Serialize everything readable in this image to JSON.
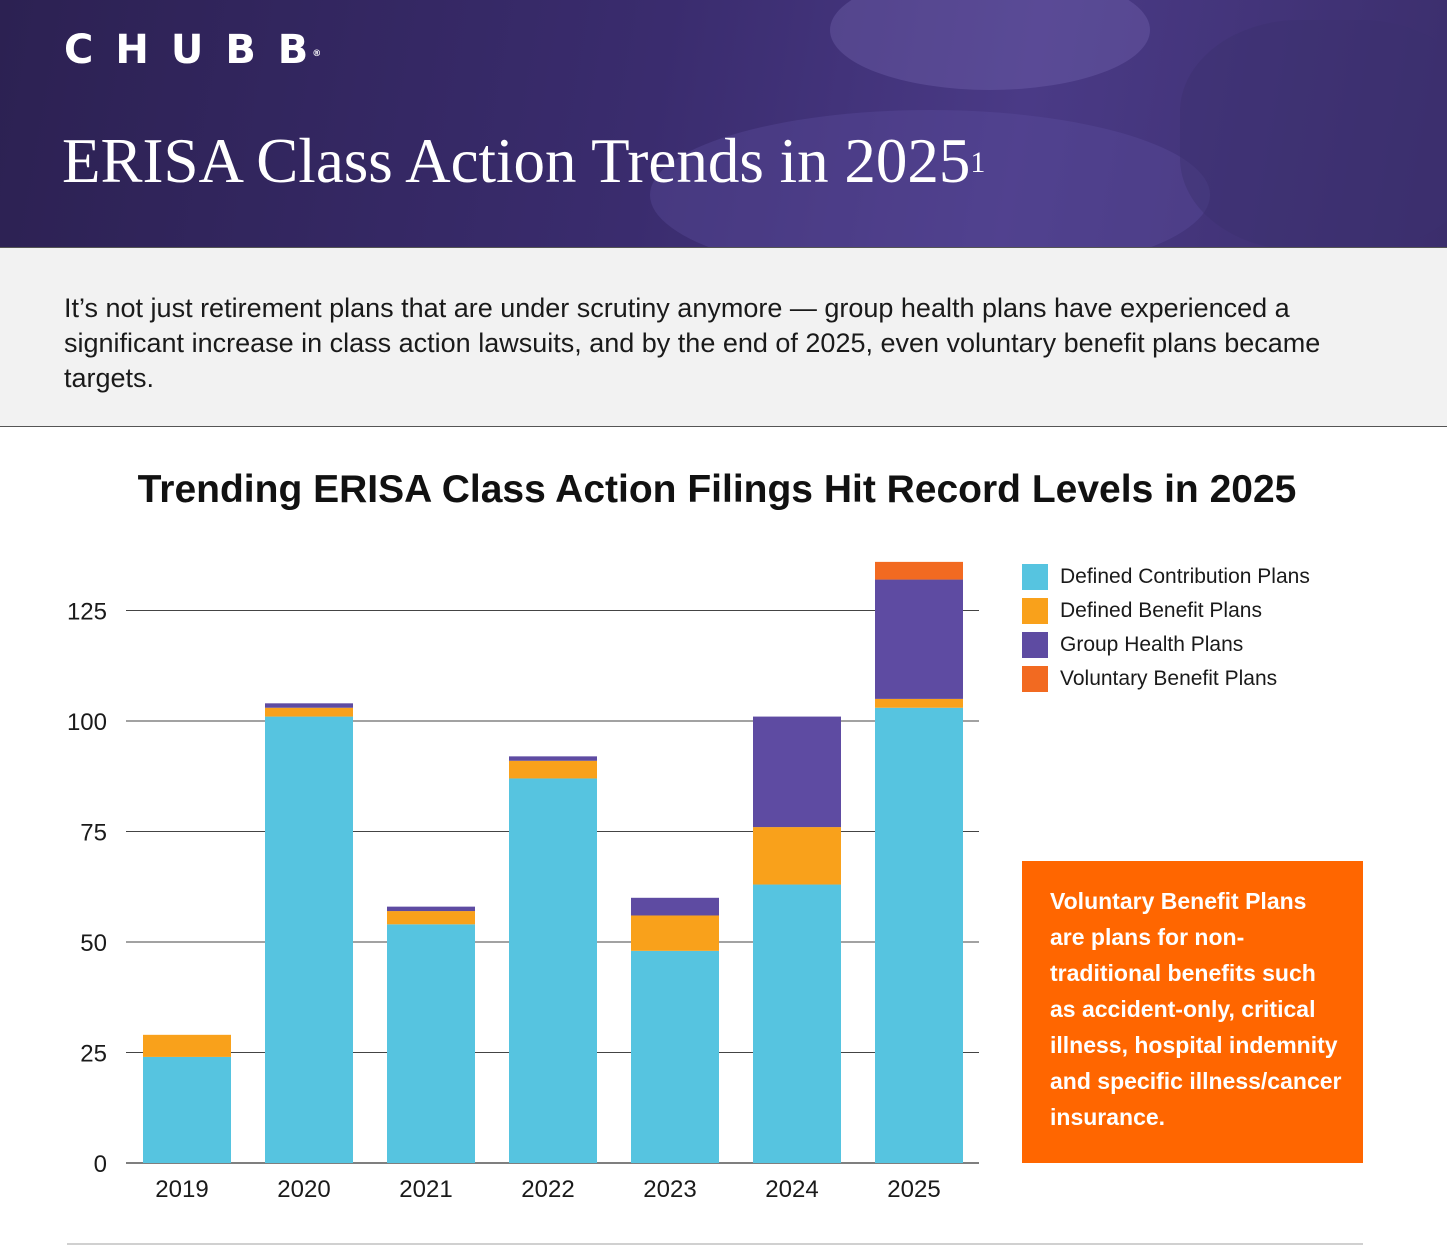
{
  "header": {
    "logo_text": "CHUBB",
    "logo_mark": "®",
    "title": "ERISA Class Action Trends in 2025",
    "title_footnote": "1"
  },
  "intro": {
    "text": "It’s not just retirement plans that are under scrutiny anymore — group health plans have experienced a significant increase in class action lawsuits, and by the end of 2025, even voluntary benefit plans became targets."
  },
  "callout": {
    "text": "Voluntary Benefit Plans are plans for non-traditional benefits such as accident-only, critical illness, hospital indemnity and specific illness/cancer insurance."
  },
  "colors": {
    "brand_purple": "#3a2c6e",
    "defined_contribution": "#56c4e0",
    "defined_benefit": "#f9a11b",
    "group_health": "#5e4ba2",
    "voluntary_benefit": "#f26a21",
    "callout_orange": "#ff6600"
  },
  "chart_data": {
    "type": "bar",
    "stacked": true,
    "title": "Trending ERISA Class Action Filings Hit Record Levels in 2025",
    "categories": [
      "2019",
      "2020",
      "2021",
      "2022",
      "2023",
      "2024",
      "2025"
    ],
    "series": [
      {
        "name": "Defined Contribution Plans",
        "color": "#56c4e0",
        "values": [
          24,
          101,
          54,
          87,
          48,
          63,
          103
        ]
      },
      {
        "name": "Defined Benefit Plans",
        "color": "#f9a11b",
        "values": [
          5,
          2,
          3,
          4,
          8,
          13,
          2
        ]
      },
      {
        "name": "Group Health Plans",
        "color": "#5e4ba2",
        "values": [
          0,
          1,
          1,
          1,
          4,
          25,
          27
        ]
      },
      {
        "name": "Voluntary Benefit Plans",
        "color": "#f26a21",
        "values": [
          0,
          0,
          0,
          0,
          0,
          0,
          4
        ]
      }
    ],
    "yticks": [
      0,
      25,
      50,
      75,
      100,
      125
    ],
    "ylim": [
      0,
      136
    ],
    "grid": true,
    "legend_position": "top-right"
  }
}
